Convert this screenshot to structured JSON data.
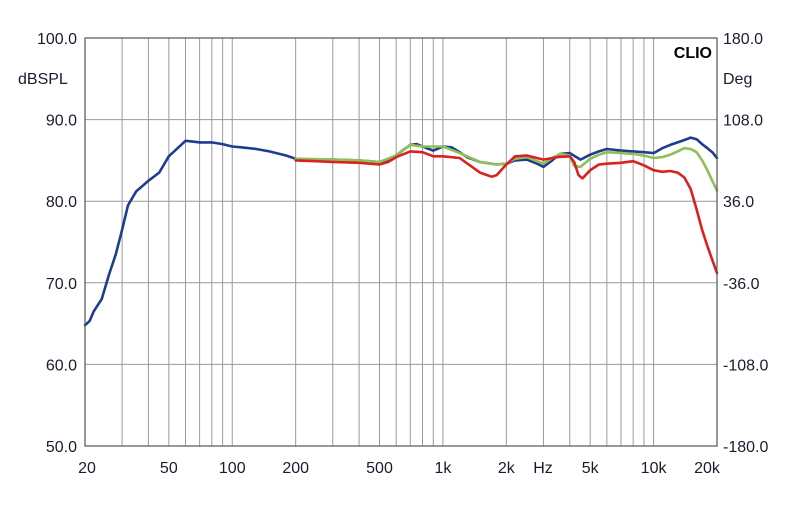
{
  "chart_data": {
    "type": "line",
    "brand_label": "CLIO",
    "ylabel_left": "dBSPL",
    "ylabel_right": "Deg",
    "x_unit_label": "Hz",
    "x_scale": "log",
    "xlim": [
      20,
      20000
    ],
    "ylim": [
      50,
      100
    ],
    "y2lim": [
      -180,
      180
    ],
    "grid": true,
    "x_tick_labels": [
      {
        "value": 20,
        "label": "20"
      },
      {
        "value": 50,
        "label": "50"
      },
      {
        "value": 100,
        "label": "100"
      },
      {
        "value": 200,
        "label": "200"
      },
      {
        "value": 500,
        "label": "500"
      },
      {
        "value": 1000,
        "label": "1k"
      },
      {
        "value": 2000,
        "label": "2k"
      },
      {
        "value": 5000,
        "label": "5k"
      },
      {
        "value": 10000,
        "label": "10k"
      },
      {
        "value": 20000,
        "label": "20k"
      }
    ],
    "y_tick_labels": [
      "100.0",
      "90.0",
      "80.0",
      "70.0",
      "60.0",
      "50.0"
    ],
    "y2_tick_labels": [
      "180.0",
      "108.0",
      "36.0",
      "-36.0",
      "-108.0",
      "-180.0"
    ],
    "series": [
      {
        "color": "#1f3d8f",
        "x": [
          20,
          21,
          22,
          24,
          26,
          28,
          30,
          32,
          35,
          40,
          45,
          50,
          55,
          60,
          65,
          70,
          80,
          90,
          100,
          110,
          130,
          150,
          180,
          200,
          250,
          300,
          400,
          500,
          550,
          600,
          650,
          700,
          750,
          800,
          900,
          1000,
          1100,
          1200,
          1300,
          1500,
          1800,
          2000,
          2200,
          2500,
          2800,
          3000,
          3300,
          3600,
          4000,
          4500,
          5000,
          5500,
          6000,
          7000,
          8000,
          9000,
          10000,
          11000,
          12000,
          13000,
          14000,
          15000,
          16000,
          17000,
          18000,
          19000,
          20000
        ],
        "y": [
          64.8,
          65.3,
          66.5,
          68.0,
          71.0,
          73.5,
          76.5,
          79.5,
          81.2,
          82.5,
          83.5,
          85.5,
          86.5,
          87.4,
          87.3,
          87.2,
          87.2,
          87.0,
          86.7,
          86.6,
          86.4,
          86.1,
          85.6,
          85.2,
          85.1,
          85.1,
          85.0,
          84.8,
          85.0,
          85.6,
          86.3,
          86.9,
          87.0,
          86.7,
          86.2,
          86.7,
          86.6,
          86.0,
          85.4,
          84.8,
          84.5,
          84.6,
          85.0,
          85.1,
          84.6,
          84.2,
          85.0,
          85.8,
          85.9,
          85.1,
          85.7,
          86.1,
          86.4,
          86.2,
          86.1,
          86.0,
          85.9,
          86.5,
          86.9,
          87.2,
          87.5,
          87.8,
          87.6,
          87.0,
          86.5,
          86.0,
          85.3
        ]
      },
      {
        "color": "#8ec058",
        "x": [
          200,
          300,
          400,
          500,
          600,
          700,
          800,
          1000,
          1200,
          1500,
          1800,
          2000,
          2200,
          2500,
          2800,
          3000,
          3300,
          3600,
          4000,
          4200,
          4500,
          5000,
          5500,
          6000,
          7000,
          8000,
          9000,
          10000,
          11000,
          12000,
          13000,
          14000,
          15000,
          16000,
          17000,
          18000,
          19000,
          20000
        ],
        "y": [
          85.2,
          85.1,
          85.0,
          84.8,
          85.6,
          86.9,
          86.7,
          86.7,
          85.9,
          84.8,
          84.5,
          84.6,
          85.2,
          85.4,
          84.9,
          84.6,
          85.3,
          85.8,
          85.6,
          84.3,
          84.2,
          85.2,
          85.7,
          86.0,
          85.9,
          85.8,
          85.6,
          85.3,
          85.4,
          85.7,
          86.1,
          86.5,
          86.4,
          86.0,
          85.0,
          83.8,
          82.5,
          81.3
        ]
      },
      {
        "color": "#d92121",
        "x": [
          200,
          250,
          300,
          400,
          500,
          550,
          600,
          700,
          800,
          900,
          1000,
          1200,
          1500,
          1700,
          1800,
          2000,
          2200,
          2500,
          3000,
          3500,
          4000,
          4200,
          4400,
          4600,
          5000,
          5500,
          6000,
          7000,
          8000,
          9000,
          10000,
          11000,
          12000,
          13000,
          14000,
          15000,
          16000,
          17000,
          18000,
          19000,
          20000
        ],
        "y": [
          85.0,
          84.9,
          84.8,
          84.7,
          84.5,
          84.8,
          85.4,
          86.1,
          86.0,
          85.5,
          85.5,
          85.3,
          83.5,
          83.0,
          83.2,
          84.5,
          85.5,
          85.6,
          85.1,
          85.4,
          85.5,
          84.8,
          83.2,
          82.8,
          83.8,
          84.5,
          84.6,
          84.7,
          84.9,
          84.4,
          83.8,
          83.6,
          83.7,
          83.5,
          82.9,
          81.5,
          79.0,
          76.5,
          74.5,
          72.8,
          71.2
        ]
      }
    ]
  }
}
